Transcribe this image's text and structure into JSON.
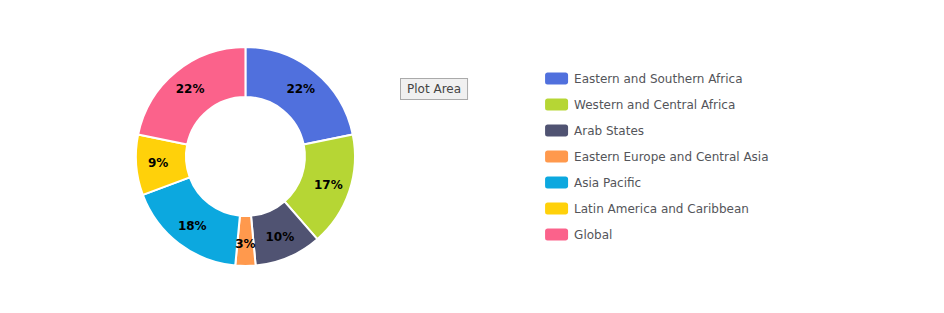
{
  "chart_data": {
    "type": "pie",
    "categories": [
      "Eastern and Southern Africa",
      "Western and Central Africa",
      "Arab States",
      "Eastern Europe and Central Asia",
      "Asia Pacific",
      "Latin America and Caribbean",
      "Global"
    ],
    "values": [
      22,
      17,
      10,
      3,
      18,
      9,
      22
    ],
    "value_labels": [
      "22%",
      "17%",
      "10%",
      "3%",
      "18%",
      "9%",
      "22%"
    ],
    "data_labels": true,
    "legend": "right",
    "annotations": [
      "Plot Area"
    ]
  }
}
